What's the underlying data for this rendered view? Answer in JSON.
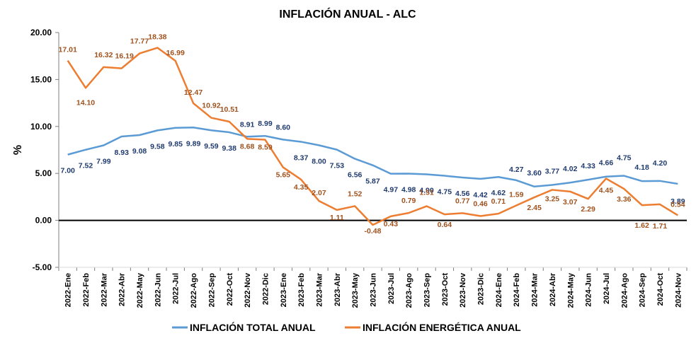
{
  "chart_data": {
    "type": "line",
    "title": "INFLACIÓN ANUAL - ALC",
    "ylabel": "%",
    "xlabel": "",
    "ylim": [
      -5,
      20
    ],
    "yticks": [
      "-5.00",
      "0.00",
      "5.00",
      "10.00",
      "15.00",
      "20.00"
    ],
    "grid": false,
    "legend_position": "bottom",
    "categories": [
      "2022-Ene",
      "2022-Feb",
      "2022-Mar",
      "2022-Abr",
      "2022-May",
      "2022-Jun",
      "2022-Jul",
      "2022-Ago",
      "2022-Sep",
      "2022-Oct",
      "2022-Nov",
      "2022-Dic",
      "2023-Ene",
      "2023-Feb",
      "2023-Mar",
      "2023-Abr",
      "2023-May",
      "2023-Jun",
      "2023-Jul",
      "2023-Ago",
      "2023-Sep",
      "2023-Oct",
      "2023-Nov",
      "2023-Dic",
      "2024-Ene",
      "2024-Feb",
      "2024-Mar",
      "2024-Abr",
      "2024-May",
      "2024-Jun",
      "2024-Jul",
      "2024-Ago",
      "2024-Sep",
      "2024-Oct",
      "2024-Nov"
    ],
    "series": [
      {
        "name": "INFLACIÓN TOTAL ANUAL",
        "color": "#5b9bd5",
        "label_color": "#1f3a6e",
        "values": [
          7.0,
          7.52,
          7.99,
          8.93,
          9.08,
          9.58,
          9.85,
          9.89,
          9.59,
          9.38,
          8.91,
          8.99,
          8.6,
          8.37,
          8.0,
          7.53,
          6.56,
          5.87,
          4.97,
          4.98,
          4.9,
          4.75,
          4.56,
          4.42,
          4.62,
          4.27,
          3.6,
          3.77,
          4.02,
          4.33,
          4.66,
          4.75,
          4.18,
          4.2,
          3.89
        ],
        "labels": [
          "7.00",
          "7.52",
          "7.99",
          "8.93",
          "9.08",
          "9.58",
          "9.85",
          "9.89",
          "9.59",
          "9.38",
          "8.91",
          "8.99",
          "8.60",
          "8.37",
          "8.00",
          "7.53",
          "6.56",
          "5.87",
          "4.97",
          "4.98",
          "4.90",
          "4.75",
          "4.56",
          "4.42",
          "4.62",
          "4.27",
          "3.60",
          "3.77",
          "4.02",
          "4.33",
          "4.66",
          "4.75",
          "4.18",
          "4.20",
          "3.89"
        ]
      },
      {
        "name": "INFLACIÓN ENERGÉTICA ANUAL",
        "color": "#ed7d31",
        "label_color": "#a0521e",
        "values": [
          17.01,
          14.1,
          16.32,
          16.19,
          17.77,
          18.38,
          16.99,
          12.47,
          10.92,
          10.51,
          8.68,
          8.59,
          5.65,
          4.35,
          2.07,
          1.11,
          1.52,
          -0.48,
          0.43,
          0.79,
          1.51,
          0.64,
          0.77,
          0.46,
          0.71,
          1.59,
          2.45,
          3.25,
          3.07,
          2.29,
          4.45,
          3.36,
          1.62,
          1.71,
          0.54
        ],
        "labels": [
          "17.01",
          "14.10",
          "16.32",
          "16.19",
          "17.77",
          "18.38",
          "16.99",
          "12.47",
          "10.92",
          "10.51",
          "8.68",
          "8.59",
          "5.65",
          "4.35",
          "2.07",
          "1.11",
          "1.52",
          "-0.48",
          "0.43",
          "0.79",
          "1.51",
          "0.64",
          "0.77",
          "0.46",
          "0.71",
          "1.59",
          "2.45",
          "3.25",
          "3.07",
          "2.29",
          "4.45",
          "3.36",
          "1.62",
          "1.71",
          "0.54"
        ]
      }
    ]
  }
}
